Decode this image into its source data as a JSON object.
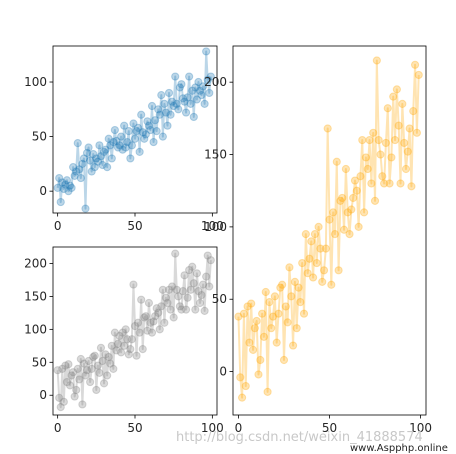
{
  "chart_data": [
    {
      "type": "line",
      "panel": "top-left",
      "marker": "circle",
      "color": "#1f77b4",
      "xlim": [
        -3,
        103
      ],
      "ylim": [
        -20,
        133
      ],
      "xticks": [
        0,
        50,
        100
      ],
      "yticks": [
        0,
        50,
        100
      ],
      "x": [
        0,
        1,
        2,
        3,
        4,
        5,
        6,
        7,
        8,
        9,
        10,
        11,
        12,
        13,
        14,
        15,
        16,
        17,
        18,
        19,
        20,
        21,
        22,
        23,
        24,
        25,
        26,
        27,
        28,
        29,
        30,
        31,
        32,
        33,
        34,
        35,
        36,
        37,
        38,
        39,
        40,
        41,
        42,
        43,
        44,
        45,
        46,
        47,
        48,
        49,
        50,
        51,
        52,
        53,
        54,
        55,
        56,
        57,
        58,
        59,
        60,
        61,
        62,
        63,
        64,
        65,
        66,
        67,
        68,
        69,
        70,
        71,
        72,
        73,
        74,
        75,
        76,
        77,
        78,
        79,
        80,
        81,
        82,
        83,
        84,
        85,
        86,
        87,
        88,
        89,
        90,
        91,
        92,
        93,
        94,
        95,
        96,
        97,
        98,
        99
      ],
      "y": [
        3,
        12,
        -10,
        8,
        2,
        6,
        10,
        0,
        5,
        3,
        22,
        14,
        18,
        44,
        20,
        12,
        25,
        30,
        -16,
        35,
        40,
        28,
        18,
        34,
        22,
        30,
        27,
        42,
        32,
        24,
        36,
        38,
        22,
        48,
        42,
        30,
        45,
        56,
        46,
        40,
        42,
        50,
        38,
        60,
        40,
        45,
        55,
        30,
        42,
        62,
        48,
        55,
        58,
        36,
        70,
        54,
        48,
        52,
        64,
        60,
        56,
        78,
        45,
        65,
        55,
        75,
        70,
        88,
        50,
        80,
        72,
        60,
        90,
        70,
        82,
        78,
        105,
        80,
        75,
        95,
        98,
        85,
        82,
        72,
        86,
        105,
        80,
        92,
        68,
        95,
        84,
        100,
        92,
        88,
        96,
        80,
        128,
        102,
        90,
        105
      ]
    },
    {
      "type": "line",
      "panel": "bottom-left",
      "marker": "circle",
      "color": "#808080",
      "xlim": [
        -3,
        103
      ],
      "ylim": [
        -30,
        225
      ],
      "xticks": [
        0,
        50,
        100
      ],
      "yticks": [
        0,
        50,
        100,
        150,
        200
      ],
      "x": [
        0,
        1,
        2,
        3,
        4,
        5,
        6,
        7,
        8,
        9,
        10,
        11,
        12,
        13,
        14,
        15,
        16,
        17,
        18,
        19,
        20,
        21,
        22,
        23,
        24,
        25,
        26,
        27,
        28,
        29,
        30,
        31,
        32,
        33,
        34,
        35,
        36,
        37,
        38,
        39,
        40,
        41,
        42,
        43,
        44,
        45,
        46,
        47,
        48,
        49,
        50,
        51,
        52,
        53,
        54,
        55,
        56,
        57,
        58,
        59,
        60,
        61,
        62,
        63,
        64,
        65,
        66,
        67,
        68,
        69,
        70,
        71,
        72,
        73,
        74,
        75,
        76,
        77,
        78,
        79,
        80,
        81,
        82,
        83,
        84,
        85,
        86,
        87,
        88,
        89,
        90,
        91,
        92,
        93,
        94,
        95,
        96,
        97,
        98,
        99
      ],
      "y": [
        38,
        -4,
        -18,
        40,
        -10,
        45,
        20,
        47,
        15,
        30,
        35,
        -2,
        8,
        40,
        24,
        55,
        -14,
        48,
        30,
        38,
        52,
        20,
        40,
        58,
        60,
        8,
        45,
        34,
        72,
        52,
        18,
        62,
        30,
        58,
        48,
        75,
        40,
        95,
        68,
        78,
        90,
        65,
        95,
        75,
        100,
        85,
        62,
        70,
        85,
        168,
        105,
        60,
        110,
        95,
        145,
        70,
        118,
        120,
        98,
        140,
        110,
        95,
        112,
        120,
        132,
        125,
        100,
        135,
        160,
        110,
        148,
        140,
        160,
        130,
        165,
        118,
        215,
        160,
        150,
        135,
        130,
        158,
        182,
        130,
        148,
        190,
        160,
        195,
        170,
        130,
        185,
        158,
        140,
        152,
        168,
        128,
        180,
        212,
        165,
        205
      ]
    },
    {
      "type": "line",
      "panel": "right",
      "marker": "circle",
      "color": "#ffa500",
      "xlim": [
        -3,
        103
      ],
      "ylim": [
        -30,
        225
      ],
      "xticks": [
        0,
        50,
        100
      ],
      "yticks": [
        0,
        50,
        100,
        150,
        200
      ],
      "x": [
        0,
        1,
        2,
        3,
        4,
        5,
        6,
        7,
        8,
        9,
        10,
        11,
        12,
        13,
        14,
        15,
        16,
        17,
        18,
        19,
        20,
        21,
        22,
        23,
        24,
        25,
        26,
        27,
        28,
        29,
        30,
        31,
        32,
        33,
        34,
        35,
        36,
        37,
        38,
        39,
        40,
        41,
        42,
        43,
        44,
        45,
        46,
        47,
        48,
        49,
        50,
        51,
        52,
        53,
        54,
        55,
        56,
        57,
        58,
        59,
        60,
        61,
        62,
        63,
        64,
        65,
        66,
        67,
        68,
        69,
        70,
        71,
        72,
        73,
        74,
        75,
        76,
        77,
        78,
        79,
        80,
        81,
        82,
        83,
        84,
        85,
        86,
        87,
        88,
        89,
        90,
        91,
        92,
        93,
        94,
        95,
        96,
        97,
        98,
        99
      ],
      "y": [
        38,
        -4,
        -18,
        40,
        -10,
        45,
        20,
        47,
        15,
        30,
        35,
        -2,
        8,
        40,
        24,
        55,
        -14,
        48,
        30,
        38,
        52,
        20,
        40,
        58,
        60,
        8,
        45,
        34,
        72,
        52,
        18,
        62,
        30,
        58,
        48,
        75,
        40,
        95,
        68,
        78,
        90,
        65,
        95,
        75,
        100,
        85,
        62,
        70,
        85,
        168,
        105,
        60,
        110,
        95,
        145,
        70,
        118,
        120,
        98,
        140,
        110,
        95,
        112,
        120,
        132,
        125,
        100,
        135,
        160,
        110,
        148,
        140,
        160,
        130,
        165,
        118,
        215,
        160,
        150,
        135,
        130,
        158,
        182,
        130,
        148,
        190,
        160,
        195,
        170,
        130,
        185,
        158,
        140,
        152,
        168,
        128,
        180,
        212,
        165,
        205
      ]
    }
  ],
  "watermark": {
    "left": "http://blog.csdn.net/weixin_41888574",
    "right": "www.Aspphp.online"
  }
}
